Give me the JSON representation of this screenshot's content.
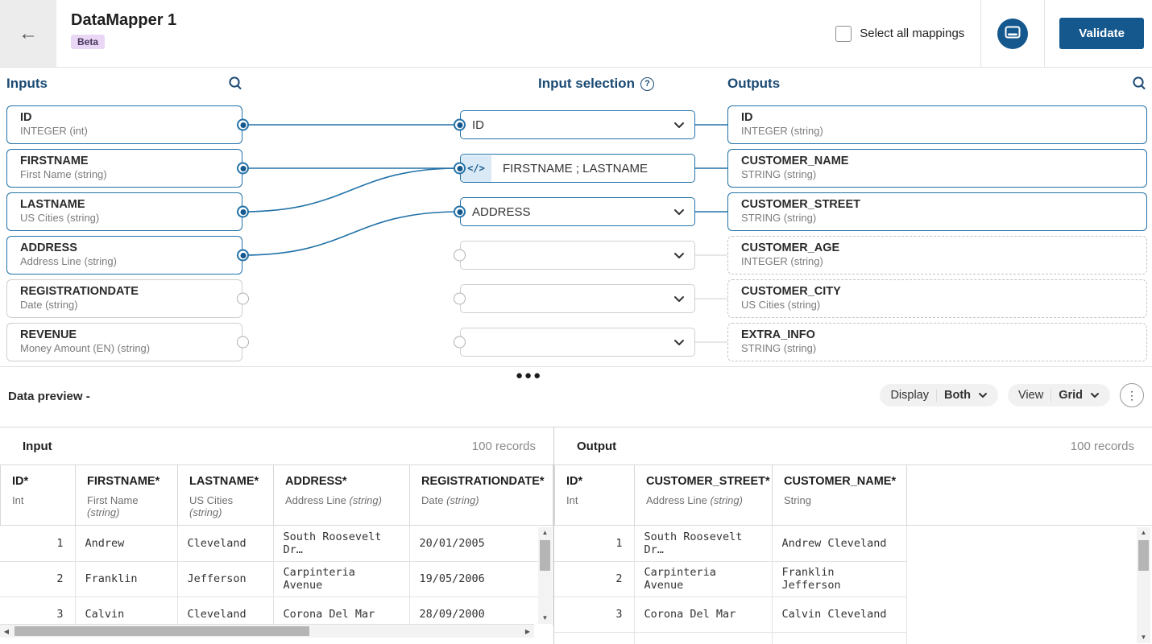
{
  "header": {
    "title": "DataMapper 1",
    "badge": "Beta",
    "select_all_label": "Select all mappings",
    "validate_label": "Validate"
  },
  "mapper": {
    "inputs_title": "Inputs",
    "selection_title": "Input selection",
    "outputs_title": "Outputs",
    "accent_color": "#2272a8",
    "stub_gray_color": "#d8d8d8",
    "inputs": [
      {
        "name": "ID",
        "type": "INTEGER (int)",
        "connected": true
      },
      {
        "name": "FIRSTNAME",
        "type": "First Name (string)",
        "connected": true
      },
      {
        "name": "LASTNAME",
        "type": "US Cities (string)",
        "connected": true
      },
      {
        "name": "ADDRESS",
        "type": "Address Line (string)",
        "connected": true
      },
      {
        "name": "REGISTRATIONDATE",
        "type": "Date (string)",
        "connected": false
      },
      {
        "name": "REVENUE",
        "type": "Money Amount (EN) (string)",
        "connected": false
      }
    ],
    "selections": [
      {
        "value": "ID",
        "kind": "dropdown",
        "connected": true
      },
      {
        "value": "FIRSTNAME ; LASTNAME",
        "kind": "formula",
        "code_icon": "</>",
        "connected": true
      },
      {
        "value": "ADDRESS",
        "kind": "dropdown",
        "connected": true
      },
      {
        "value": "",
        "kind": "dropdown",
        "connected": false
      },
      {
        "value": "",
        "kind": "dropdown",
        "connected": false
      },
      {
        "value": "",
        "kind": "dropdown",
        "connected": false
      }
    ],
    "outputs": [
      {
        "name": "ID",
        "type": "INTEGER (string)",
        "mapped": true
      },
      {
        "name": "CUSTOMER_NAME",
        "type": "STRING (string)",
        "mapped": true
      },
      {
        "name": "CUSTOMER_STREET",
        "type": "STRING (string)",
        "mapped": true
      },
      {
        "name": "CUSTOMER_AGE",
        "type": "INTEGER (string)",
        "mapped": false
      },
      {
        "name": "CUSTOMER_CITY",
        "type": "US Cities (string)",
        "mapped": false
      },
      {
        "name": "EXTRA_INFO",
        "type": "STRING (string)",
        "mapped": false
      }
    ],
    "connections": [
      {
        "from": 0,
        "to": 0
      },
      {
        "from": 1,
        "to": 1
      },
      {
        "from": 2,
        "to": 1
      },
      {
        "from": 3,
        "to": 2
      }
    ]
  },
  "preview": {
    "title": "Data preview -",
    "display_label": "Display",
    "display_value": "Both",
    "view_label": "View",
    "view_value": "Grid",
    "input_panel": {
      "title": "Input",
      "records": "100 records",
      "columns": [
        {
          "label": "ID*",
          "type": "Int",
          "italic": ""
        },
        {
          "label": "FIRSTNAME*",
          "type": "First Name ",
          "italic": "(string)"
        },
        {
          "label": "LASTNAME*",
          "type": "US Cities ",
          "italic": "(string)"
        },
        {
          "label": "ADDRESS*",
          "type": "Address Line ",
          "italic": "(string)"
        },
        {
          "label": "REGISTRATIONDATE*",
          "type": "Date ",
          "italic": "(string)"
        }
      ],
      "rows": [
        [
          "1",
          "Andrew",
          "Cleveland",
          "South Roosevelt Dr…",
          "20/01/2005"
        ],
        [
          "2",
          "Franklin",
          "Jefferson",
          "Carpinteria Avenue",
          "19/05/2006"
        ],
        [
          "3",
          "Calvin",
          "Cleveland",
          "Corona Del Mar",
          "28/09/2000"
        ]
      ]
    },
    "output_panel": {
      "title": "Output",
      "records": "100 records",
      "columns": [
        {
          "label": "ID*",
          "type": "Int",
          "italic": ""
        },
        {
          "label": "CUSTOMER_STREET*",
          "type": "Address Line ",
          "italic": "(string)"
        },
        {
          "label": "CUSTOMER_NAME*",
          "type": "String",
          "italic": ""
        }
      ],
      "rows": [
        [
          "1",
          "South Roosevelt Dr…",
          "Andrew Cleveland"
        ],
        [
          "2",
          "Carpinteria Avenue",
          "Franklin Jefferson"
        ],
        [
          "3",
          "Corona Del Mar",
          "Calvin Cleveland"
        ]
      ]
    }
  }
}
